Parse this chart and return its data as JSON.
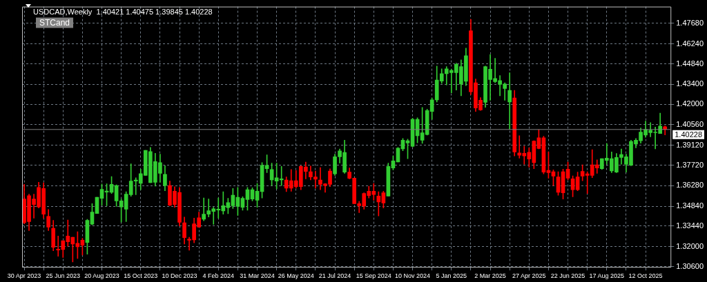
{
  "chart_data": {
    "type": "candlestick",
    "title": "USDCAD,Weekly  1.40421 1.40475 1.39845 1.40228",
    "annotations": [
      "STCand"
    ],
    "x": [
      "2023-04-30",
      "2023-05-07",
      "2023-05-14",
      "2023-05-21",
      "2023-05-28",
      "2023-06-04",
      "2023-06-11",
      "2023-06-18",
      "2023-06-25",
      "2023-07-02",
      "2023-07-09",
      "2023-07-16",
      "2023-07-23",
      "2023-07-30",
      "2023-08-06",
      "2023-08-13",
      "2023-08-20",
      "2023-08-27",
      "2023-09-03",
      "2023-09-10",
      "2023-09-17",
      "2023-09-24",
      "2023-10-01",
      "2023-10-08",
      "2023-10-15",
      "2023-10-22",
      "2023-10-29",
      "2023-11-05",
      "2023-11-12",
      "2023-11-19",
      "2023-11-26",
      "2023-12-03",
      "2023-12-10",
      "2023-12-17",
      "2023-12-24",
      "2023-12-31",
      "2024-01-07",
      "2024-01-14",
      "2024-01-21",
      "2024-01-28",
      "2024-02-04",
      "2024-02-11",
      "2024-02-18",
      "2024-02-25",
      "2024-03-03",
      "2024-03-10",
      "2024-03-17",
      "2024-03-24",
      "2024-03-31",
      "2024-04-07",
      "2024-04-14",
      "2024-04-21",
      "2024-04-28",
      "2024-05-05",
      "2024-05-12",
      "2024-05-19",
      "2024-05-26",
      "2024-06-02",
      "2024-06-09",
      "2024-06-16",
      "2024-06-23",
      "2024-06-30",
      "2024-07-07",
      "2024-07-14",
      "2024-07-21",
      "2024-07-28",
      "2024-08-04",
      "2024-08-11",
      "2024-08-18",
      "2024-08-25",
      "2024-09-01",
      "2024-09-08",
      "2024-09-15",
      "2024-09-22",
      "2024-09-29",
      "2024-10-06",
      "2024-10-13",
      "2024-10-20",
      "2024-10-27",
      "2024-11-03",
      "2024-11-10",
      "2024-11-17",
      "2024-11-24",
      "2024-12-01",
      "2024-12-08",
      "2024-12-15",
      "2024-12-22",
      "2024-12-29",
      "2025-01-05",
      "2025-01-12",
      "2025-01-19",
      "2025-01-26",
      "2025-02-02",
      "2025-02-09",
      "2025-02-16",
      "2025-02-23",
      "2025-03-02",
      "2025-03-09",
      "2025-03-16",
      "2025-03-23",
      "2025-03-30",
      "2025-04-06",
      "2025-04-13",
      "2025-04-20",
      "2025-04-27",
      "2025-05-04",
      "2025-05-11",
      "2025-05-18",
      "2025-05-25",
      "2025-06-01",
      "2025-06-08",
      "2025-06-15",
      "2025-06-22",
      "2025-06-29",
      "2025-07-06",
      "2025-07-13",
      "2025-07-20",
      "2025-07-27",
      "2025-08-03",
      "2025-08-10",
      "2025-08-17",
      "2025-08-24",
      "2025-08-31",
      "2025-09-07",
      "2025-09-14",
      "2025-09-21",
      "2025-09-28",
      "2025-10-05",
      "2025-10-12",
      "2025-10-19",
      "2025-10-26",
      "2025-11-02",
      "2025-11-09"
    ],
    "ohlc": [
      [
        1.3534,
        1.3637,
        1.336,
        1.3368
      ],
      [
        1.3558,
        1.3569,
        1.3313,
        1.3376
      ],
      [
        1.3534,
        1.3569,
        1.34,
        1.3495
      ],
      [
        1.3616,
        1.3652,
        1.3471,
        1.3479
      ],
      [
        1.3608,
        1.3649,
        1.34,
        1.3427
      ],
      [
        1.3412,
        1.3461,
        1.3313,
        1.3337
      ],
      [
        1.3329,
        1.3384,
        1.3171,
        1.3195
      ],
      [
        1.3182,
        1.3274,
        1.3132,
        1.3176
      ],
      [
        1.3242,
        1.3242,
        1.3124,
        1.3179
      ],
      [
        1.3274,
        1.3387,
        1.3202,
        1.3234
      ],
      [
        1.3266,
        1.3266,
        1.3092,
        1.3218
      ],
      [
        1.3223,
        1.3305,
        1.3116,
        1.3199
      ],
      [
        1.3245,
        1.3258,
        1.314,
        1.321
      ],
      [
        1.3229,
        1.3392,
        1.3147,
        1.3384
      ],
      [
        1.3357,
        1.3502,
        1.3352,
        1.3442
      ],
      [
        1.3432,
        1.3547,
        1.3432,
        1.3547
      ],
      [
        1.3539,
        1.364,
        1.3491,
        1.3603
      ],
      [
        1.3583,
        1.3641,
        1.3487,
        1.359
      ],
      [
        1.3581,
        1.3692,
        1.3573,
        1.3637
      ],
      [
        1.3521,
        1.3634,
        1.3482,
        1.3629
      ],
      [
        1.3479,
        1.3534,
        1.3372,
        1.3521
      ],
      [
        1.3463,
        1.3585,
        1.3376,
        1.3569
      ],
      [
        1.3565,
        1.3782,
        1.3553,
        1.366
      ],
      [
        1.366,
        1.3684,
        1.3565,
        1.3668
      ],
      [
        1.3644,
        1.3744,
        1.36,
        1.3712
      ],
      [
        1.37,
        1.3876,
        1.37,
        1.3876
      ],
      [
        1.3649,
        1.3897,
        1.3649,
        1.3868
      ],
      [
        1.3652,
        1.3855,
        1.3625,
        1.3797
      ],
      [
        1.3715,
        1.385,
        1.3652,
        1.379
      ],
      [
        1.3629,
        1.3768,
        1.3592,
        1.3708
      ],
      [
        1.3629,
        1.366,
        1.3487,
        1.3491
      ],
      [
        1.3589,
        1.3621,
        1.3476,
        1.3495
      ],
      [
        1.3581,
        1.3616,
        1.3345,
        1.3371
      ],
      [
        1.3368,
        1.3408,
        1.3218,
        1.3263
      ],
      [
        1.3253,
        1.3266,
        1.3174,
        1.3245
      ],
      [
        1.336,
        1.34,
        1.3226,
        1.3247
      ],
      [
        1.3403,
        1.3443,
        1.3337,
        1.3337
      ],
      [
        1.3392,
        1.3542,
        1.3381,
        1.3428
      ],
      [
        1.3428,
        1.3534,
        1.3408,
        1.3452
      ],
      [
        1.3447,
        1.3476,
        1.3356,
        1.3465
      ],
      [
        1.3457,
        1.3542,
        1.34,
        1.3463
      ],
      [
        1.345,
        1.3586,
        1.3428,
        1.3487
      ],
      [
        1.3474,
        1.3539,
        1.3431,
        1.3509
      ],
      [
        1.3487,
        1.3608,
        1.3468,
        1.3561
      ],
      [
        1.3482,
        1.3616,
        1.3419,
        1.3547
      ],
      [
        1.3476,
        1.355,
        1.3455,
        1.3539
      ],
      [
        1.3531,
        1.3616,
        1.3455,
        1.36
      ],
      [
        1.3534,
        1.3613,
        1.3521,
        1.36
      ],
      [
        1.3526,
        1.3644,
        1.3476,
        1.3589
      ],
      [
        1.3586,
        1.379,
        1.3542,
        1.3771
      ],
      [
        1.3747,
        1.3845,
        1.372,
        1.3771
      ],
      [
        1.3668,
        1.3787,
        1.3629,
        1.3742
      ],
      [
        1.366,
        1.3787,
        1.3605,
        1.3684
      ],
      [
        1.3668,
        1.3763,
        1.3629,
        1.3676
      ],
      [
        1.3668,
        1.3689,
        1.3586,
        1.361
      ],
      [
        1.3663,
        1.3742,
        1.3589,
        1.361
      ],
      [
        1.3663,
        1.3734,
        1.361,
        1.3621
      ],
      [
        1.3763,
        1.3768,
        1.36,
        1.3621
      ],
      [
        1.376,
        1.3794,
        1.3676,
        1.3728
      ],
      [
        1.3726,
        1.3766,
        1.3668,
        1.3689
      ],
      [
        1.3689,
        1.3731,
        1.361,
        1.3673
      ],
      [
        1.3668,
        1.3755,
        1.36,
        1.3637
      ],
      [
        1.3641,
        1.3644,
        1.3581,
        1.3629
      ],
      [
        1.3731,
        1.3747,
        1.3621,
        1.3637
      ],
      [
        1.3711,
        1.385,
        1.37,
        1.3831
      ],
      [
        1.3831,
        1.3886,
        1.3787,
        1.3873
      ],
      [
        1.3723,
        1.3947,
        1.3715,
        1.3861
      ],
      [
        1.3723,
        1.3752,
        1.3676,
        1.3679
      ],
      [
        1.3681,
        1.3681,
        1.3502,
        1.3502
      ],
      [
        1.3502,
        1.3518,
        1.3439,
        1.3487
      ],
      [
        1.3573,
        1.3578,
        1.3463,
        1.3484
      ],
      [
        1.3589,
        1.3624,
        1.3542,
        1.3558
      ],
      [
        1.3589,
        1.3644,
        1.3526,
        1.3566
      ],
      [
        1.3555,
        1.3585,
        1.3416,
        1.3514
      ],
      [
        1.3578,
        1.3589,
        1.3471,
        1.3506
      ],
      [
        1.3555,
        1.3787,
        1.3555,
        1.3763
      ],
      [
        1.3752,
        1.3837,
        1.3739,
        1.3802
      ],
      [
        1.3794,
        1.3897,
        1.3794,
        1.3892
      ],
      [
        1.3886,
        1.396,
        1.3873,
        1.3947
      ],
      [
        1.3928,
        1.3955,
        1.3818,
        1.3944
      ],
      [
        1.3905,
        1.4102,
        1.39,
        1.4094
      ],
      [
        1.3979,
        1.4105,
        1.3929,
        1.4094
      ],
      [
        1.3947,
        1.4178,
        1.3925,
        1.4
      ],
      [
        1.3987,
        1.4165,
        1.3984,
        1.4156
      ],
      [
        1.4149,
        1.4244,
        1.4094,
        1.4231
      ],
      [
        1.4231,
        1.4468,
        1.4216,
        1.437
      ],
      [
        1.4362,
        1.4449,
        1.4347,
        1.4415
      ],
      [
        1.4415,
        1.4465,
        1.4336,
        1.4449
      ],
      [
        1.4422,
        1.4446,
        1.428,
        1.4438
      ],
      [
        1.4422,
        1.4489,
        1.4299,
        1.4481
      ],
      [
        1.4342,
        1.4512,
        1.426,
        1.4465
      ],
      [
        1.4361,
        1.4594,
        1.4331,
        1.4541
      ],
      [
        1.4717,
        1.4796,
        1.4268,
        1.4287
      ],
      [
        1.4351,
        1.4378,
        1.4149,
        1.4173
      ],
      [
        1.4228,
        1.4247,
        1.4157,
        1.416
      ],
      [
        1.4213,
        1.4468,
        1.4178,
        1.4465
      ],
      [
        1.4373,
        1.4549,
        1.4228,
        1.4446
      ],
      [
        1.4359,
        1.4523,
        1.4351,
        1.4381
      ],
      [
        1.4339,
        1.4402,
        1.426,
        1.4367
      ],
      [
        1.431,
        1.4351,
        1.4228,
        1.4342
      ],
      [
        1.4216,
        1.4421,
        1.4023,
        1.4298
      ],
      [
        1.4244,
        1.4298,
        1.3837,
        1.3865
      ],
      [
        1.3858,
        1.3979,
        1.3821,
        1.3842
      ],
      [
        1.3855,
        1.3905,
        1.3779,
        1.3837
      ],
      [
        1.3863,
        1.3894,
        1.3758,
        1.3815
      ],
      [
        1.3941,
        1.3944,
        1.3747,
        1.379
      ],
      [
        1.3965,
        1.402,
        1.3886,
        1.3889
      ],
      [
        1.3965,
        1.3976,
        1.3711,
        1.3723
      ],
      [
        1.3736,
        1.3865,
        1.3681,
        1.3719
      ],
      [
        1.3726,
        1.3739,
        1.3629,
        1.3695
      ],
      [
        1.3689,
        1.3726,
        1.3561,
        1.3581
      ],
      [
        1.3726,
        1.3744,
        1.3534,
        1.3578
      ],
      [
        1.3744,
        1.3794,
        1.3668,
        1.3681
      ],
      [
        1.3676,
        1.3697,
        1.355,
        1.36
      ],
      [
        1.3689,
        1.3723,
        1.3592,
        1.36
      ],
      [
        1.3728,
        1.3774,
        1.3663,
        1.3695
      ],
      [
        1.3711,
        1.3726,
        1.3573,
        1.37
      ],
      [
        1.3774,
        1.3881,
        1.3684,
        1.37
      ],
      [
        1.3774,
        1.381,
        1.3715,
        1.3752
      ],
      [
        1.3747,
        1.3818,
        1.3742,
        1.3818
      ],
      [
        1.3805,
        1.3925,
        1.3779,
        1.3821
      ],
      [
        1.3731,
        1.3865,
        1.372,
        1.3818
      ],
      [
        1.3723,
        1.3854,
        1.372,
        1.3826
      ],
      [
        1.3826,
        1.3886,
        1.3779,
        1.3847
      ],
      [
        1.3779,
        1.385,
        1.3723,
        1.3831
      ],
      [
        1.3771,
        1.3947,
        1.3768,
        1.3939
      ],
      [
        1.3921,
        1.396,
        1.3894,
        1.3947
      ],
      [
        1.3944,
        1.4034,
        1.3926,
        1.4004
      ],
      [
        1.3984,
        1.4082,
        1.3968,
        1.4023
      ],
      [
        1.4,
        1.4071,
        1.3971,
        1.4018
      ],
      [
        1.4,
        1.4039,
        1.3886,
        1.4004
      ],
      [
        1.3994,
        1.4138,
        1.3994,
        1.4047
      ],
      [
        1.40421,
        1.40475,
        1.39845,
        1.40228
      ]
    ],
    "colors": [
      "#ff0000",
      "#ff0000",
      "#ff0000",
      "#ff0000",
      "#ff0000",
      "#ff0000",
      "#ff0000",
      "#ff0000",
      "#ff0000",
      "#ff0000",
      "#ff0000",
      "#ff0000",
      "#ff0000",
      "#32cd32",
      "#32cd32",
      "#32cd32",
      "#32cd32",
      "#32cd32",
      "#32cd32",
      "#32cd32",
      "#32cd32",
      "#32cd32",
      "#32cd32",
      "#32cd32",
      "#32cd32",
      "#32cd32",
      "#32cd32",
      "#32cd32",
      "#32cd32",
      "#32cd32",
      "#ff0000",
      "#ff0000",
      "#ff0000",
      "#ff0000",
      "#ff0000",
      "#ff0000",
      "#ff0000",
      "#32cd32",
      "#32cd32",
      "#32cd32",
      "#32cd32",
      "#32cd32",
      "#32cd32",
      "#32cd32",
      "#32cd32",
      "#32cd32",
      "#32cd32",
      "#32cd32",
      "#32cd32",
      "#32cd32",
      "#32cd32",
      "#32cd32",
      "#32cd32",
      "#32cd32",
      "#ff0000",
      "#ff0000",
      "#ff0000",
      "#ff0000",
      "#ff0000",
      "#ff0000",
      "#ff0000",
      "#ff0000",
      "#ff0000",
      "#ff0000",
      "#32cd32",
      "#32cd32",
      "#32cd32",
      "#ff0000",
      "#ff0000",
      "#ff0000",
      "#ff0000",
      "#ff0000",
      "#ff0000",
      "#ff0000",
      "#ff0000",
      "#32cd32",
      "#32cd32",
      "#32cd32",
      "#32cd32",
      "#32cd32",
      "#32cd32",
      "#32cd32",
      "#32cd32",
      "#32cd32",
      "#32cd32",
      "#32cd32",
      "#32cd32",
      "#32cd32",
      "#32cd32",
      "#32cd32",
      "#32cd32",
      "#32cd32",
      "#ff0000",
      "#ff0000",
      "#ff0000",
      "#32cd32",
      "#32cd32",
      "#32cd32",
      "#32cd32",
      "#32cd32",
      "#32cd32",
      "#ff0000",
      "#ff0000",
      "#ff0000",
      "#ff0000",
      "#ff0000",
      "#ff0000",
      "#ff0000",
      "#ff0000",
      "#ff0000",
      "#ff0000",
      "#ff0000",
      "#ff0000",
      "#ff0000",
      "#ff0000",
      "#ff0000",
      "#ff0000",
      "#ff0000",
      "#ff0000",
      "#32cd32",
      "#32cd32",
      "#32cd32",
      "#32cd32",
      "#32cd32",
      "#32cd32",
      "#32cd32",
      "#32cd32",
      "#32cd32",
      "#32cd32",
      "#32cd32",
      "#32cd32",
      "#32cd32",
      "#ff0000"
    ],
    "xlim": [
      "2023-04-27",
      "2025-11-18"
    ],
    "xticks": [
      {
        "value": "2023-04-30",
        "label": "30 Apr 2023"
      },
      {
        "value": "2023-05-28",
        "label": null
      },
      {
        "value": "2023-06-25",
        "label": "25 Jun 2023"
      },
      {
        "value": "2023-07-23",
        "label": null
      },
      {
        "value": "2023-08-20",
        "label": "20 Aug 2023"
      },
      {
        "value": "2023-09-17",
        "label": null
      },
      {
        "value": "2023-10-15",
        "label": "15 Oct 2023"
      },
      {
        "value": "2023-11-12",
        "label": null
      },
      {
        "value": "2023-12-10",
        "label": "10 Dec 2023"
      },
      {
        "value": "2024-01-07",
        "label": null
      },
      {
        "value": "2024-02-04",
        "label": "4 Feb 2024"
      },
      {
        "value": "2024-03-03",
        "label": null
      },
      {
        "value": "2024-03-31",
        "label": "31 Mar 2024"
      },
      {
        "value": "2024-04-28",
        "label": null
      },
      {
        "value": "2024-05-26",
        "label": "26 May 2024"
      },
      {
        "value": "2024-06-23",
        "label": null
      },
      {
        "value": "2024-07-21",
        "label": "21 Jul 2024"
      },
      {
        "value": "2024-08-18",
        "label": null
      },
      {
        "value": "2024-09-15",
        "label": "15 Sep 2024"
      },
      {
        "value": "2024-10-13",
        "label": null
      },
      {
        "value": "2024-11-10",
        "label": "10 Nov 2024"
      },
      {
        "value": "2024-12-08",
        "label": null
      },
      {
        "value": "2025-01-05",
        "label": "5 Jan 2025"
      },
      {
        "value": "2025-02-02",
        "label": null
      },
      {
        "value": "2025-03-02",
        "label": "2 Mar 2025"
      },
      {
        "value": "2025-03-30",
        "label": null
      },
      {
        "value": "2025-04-27",
        "label": "27 Apr 2025"
      },
      {
        "value": "2025-05-25",
        "label": null
      },
      {
        "value": "2025-06-22",
        "label": "22 Jun 2025"
      },
      {
        "value": "2025-07-20",
        "label": null
      },
      {
        "value": "2025-08-17",
        "label": "17 Aug 2025"
      },
      {
        "value": "2025-09-14",
        "label": null
      },
      {
        "value": "2025-10-12",
        "label": "12 Oct 2025"
      }
    ],
    "ylim": [
      1.3052,
      1.4886
    ],
    "yticks": [
      {
        "value": 1.306,
        "label": "1.30600"
      },
      {
        "value": 1.32,
        "label": "1.32000"
      },
      {
        "value": 1.3344,
        "label": "1.33440"
      },
      {
        "value": 1.3484,
        "label": "1.34840"
      },
      {
        "value": 1.3628,
        "label": "1.36280"
      },
      {
        "value": 1.3772,
        "label": "1.37720"
      },
      {
        "value": 1.3912,
        "label": "1.39120"
      },
      {
        "value": 1.4056,
        "label": "1.40560"
      },
      {
        "value": 1.42,
        "label": "1.42000"
      },
      {
        "value": 1.434,
        "label": "1.43400"
      },
      {
        "value": 1.4484,
        "label": "1.44840"
      },
      {
        "value": 1.4624,
        "label": "1.46240"
      },
      {
        "value": 1.4768,
        "label": "1.47680"
      }
    ],
    "ref_lines": [
      {
        "axis": "y",
        "value": 1.40228,
        "label": "1.40228",
        "color": "#808080"
      }
    ],
    "grid": true,
    "legend": false
  }
}
